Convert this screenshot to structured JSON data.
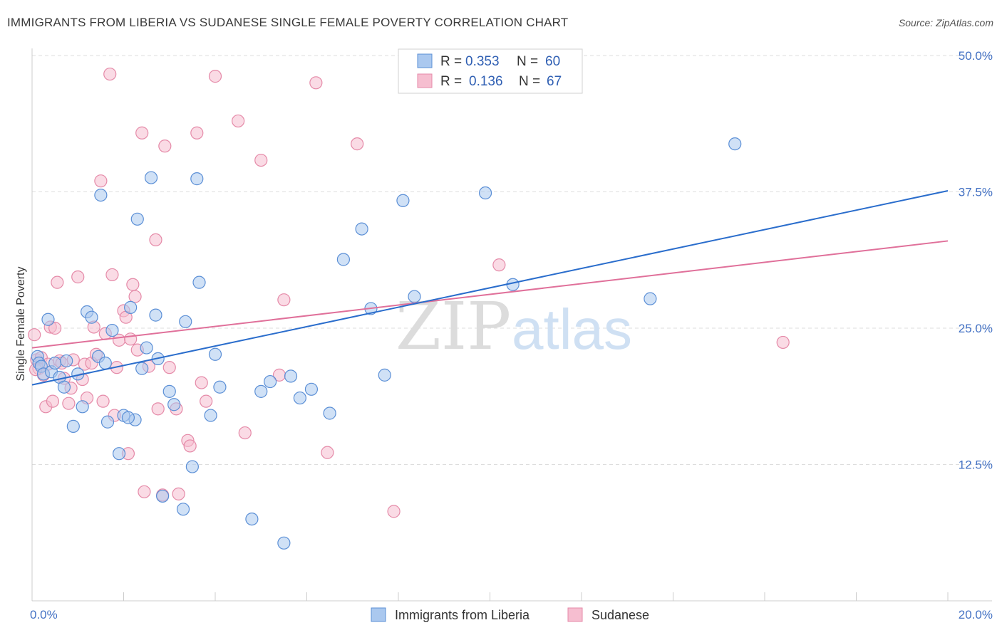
{
  "title": "IMMIGRANTS FROM LIBERIA VS SUDANESE SINGLE FEMALE POVERTY CORRELATION CHART",
  "source": "Source: ZipAtlas.com",
  "watermark": {
    "zip": "ZIP",
    "atlas": "atlas"
  },
  "legend_top": [
    {
      "r_label": "R =",
      "r_value": "0.353",
      "n_label": "N =",
      "n_value": "60"
    },
    {
      "r_label": "R =",
      "r_value": "0.136",
      "n_label": "N =",
      "n_value": "67"
    }
  ],
  "colors": {
    "blue_fill": "#aac8ef",
    "blue_stroke": "#5b8fd6",
    "blue_line": "#2a6dcc",
    "pink_fill": "#f6bed0",
    "pink_stroke": "#e58aa8",
    "pink_line": "#e0709a",
    "grid": "#dddddd",
    "tick_text": "#4472c4"
  },
  "chart_data": {
    "type": "scatter",
    "title": "IMMIGRANTS FROM LIBERIA VS SUDANESE SINGLE FEMALE POVERTY CORRELATION CHART",
    "xlabel": "",
    "ylabel": "Single Female Poverty",
    "xlim": [
      0,
      20
    ],
    "ylim": [
      0,
      52
    ],
    "x_tick_labels": [
      "0.0%",
      "20.0%"
    ],
    "y_tick_labels": [
      "12.5%",
      "25.0%",
      "37.5%",
      "50.0%"
    ],
    "y_ticks": [
      12.5,
      25,
      37.5,
      50
    ],
    "grid": true,
    "legend": "bottom-center",
    "series": [
      {
        "name": "Immigrants from Liberia",
        "r": 0.353,
        "n": 60,
        "trend": {
          "x": [
            0,
            20
          ],
          "y": [
            19.8,
            37.6
          ]
        },
        "points": [
          [
            0.12,
            22.4
          ],
          [
            0.15,
            21.8
          ],
          [
            0.2,
            21.5
          ],
          [
            0.25,
            20.8
          ],
          [
            0.35,
            25.8
          ],
          [
            0.42,
            21
          ],
          [
            0.5,
            21.8
          ],
          [
            0.6,
            20.5
          ],
          [
            0.7,
            19.6
          ],
          [
            0.75,
            22
          ],
          [
            0.9,
            16
          ],
          [
            1.0,
            20.8
          ],
          [
            1.1,
            17.8
          ],
          [
            1.2,
            26.5
          ],
          [
            1.3,
            26
          ],
          [
            1.45,
            22.4
          ],
          [
            1.5,
            37.2
          ],
          [
            1.6,
            21.8
          ],
          [
            1.65,
            16.4
          ],
          [
            1.75,
            24.8
          ],
          [
            1.9,
            13.5
          ],
          [
            2.0,
            17
          ],
          [
            2.15,
            26.9
          ],
          [
            2.25,
            16.6
          ],
          [
            2.1,
            16.8
          ],
          [
            2.3,
            35
          ],
          [
            2.4,
            21.3
          ],
          [
            2.5,
            23.2
          ],
          [
            2.6,
            38.8
          ],
          [
            2.7,
            26.2
          ],
          [
            2.75,
            22.2
          ],
          [
            2.85,
            9.6
          ],
          [
            3.0,
            19.2
          ],
          [
            3.1,
            18
          ],
          [
            3.3,
            8.4
          ],
          [
            3.35,
            25.6
          ],
          [
            3.5,
            12.3
          ],
          [
            3.6,
            38.7
          ],
          [
            3.65,
            29.2
          ],
          [
            3.9,
            17
          ],
          [
            4.0,
            22.6
          ],
          [
            4.1,
            19.6
          ],
          [
            4.8,
            7.5
          ],
          [
            5.0,
            19.2
          ],
          [
            5.2,
            20.1
          ],
          [
            5.5,
            5.3
          ],
          [
            5.65,
            20.6
          ],
          [
            5.85,
            18.6
          ],
          [
            6.1,
            19.4
          ],
          [
            6.5,
            17.2
          ],
          [
            6.8,
            31.3
          ],
          [
            7.2,
            34.1
          ],
          [
            7.4,
            26.8
          ],
          [
            7.7,
            20.7
          ],
          [
            8.1,
            36.7
          ],
          [
            8.35,
            27.9
          ],
          [
            9.9,
            37.4
          ],
          [
            10.5,
            29
          ],
          [
            13.5,
            27.7
          ],
          [
            15.35,
            41.9
          ]
        ]
      },
      {
        "name": "Sudanese",
        "r": 0.136,
        "n": 67,
        "trend": {
          "x": [
            0,
            20
          ],
          "y": [
            23.2,
            33
          ]
        },
        "points": [
          [
            0.1,
            22.1
          ],
          [
            0.15,
            21.3
          ],
          [
            0.2,
            22.3
          ],
          [
            0.25,
            20.7
          ],
          [
            0.3,
            17.8
          ],
          [
            0.35,
            21.7
          ],
          [
            0.4,
            25.1
          ],
          [
            0.45,
            18.3
          ],
          [
            0.5,
            25
          ],
          [
            0.55,
            29.2
          ],
          [
            0.6,
            22
          ],
          [
            0.65,
            21.8
          ],
          [
            0.7,
            20.4
          ],
          [
            0.8,
            18.1
          ],
          [
            0.85,
            19.5
          ],
          [
            0.9,
            22.1
          ],
          [
            1.0,
            29.7
          ],
          [
            1.1,
            20.3
          ],
          [
            1.15,
            21.7
          ],
          [
            1.2,
            18.6
          ],
          [
            1.3,
            21.8
          ],
          [
            1.35,
            25.1
          ],
          [
            1.4,
            22.6
          ],
          [
            1.5,
            38.5
          ],
          [
            1.55,
            18.3
          ],
          [
            1.6,
            24.5
          ],
          [
            1.7,
            48.3
          ],
          [
            1.75,
            29.9
          ],
          [
            1.8,
            17
          ],
          [
            1.85,
            21.4
          ],
          [
            1.9,
            23.9
          ],
          [
            2.0,
            26.6
          ],
          [
            2.05,
            26
          ],
          [
            2.1,
            13.5
          ],
          [
            2.15,
            24
          ],
          [
            2.2,
            29
          ],
          [
            2.25,
            27.9
          ],
          [
            2.3,
            23
          ],
          [
            2.4,
            42.9
          ],
          [
            2.45,
            10
          ],
          [
            2.55,
            21.5
          ],
          [
            2.7,
            33.1
          ],
          [
            2.75,
            17.6
          ],
          [
            2.85,
            9.7
          ],
          [
            2.9,
            41.7
          ],
          [
            3.0,
            21.4
          ],
          [
            3.15,
            17.6
          ],
          [
            3.2,
            9.8
          ],
          [
            3.4,
            14.7
          ],
          [
            3.45,
            14.2
          ],
          [
            3.6,
            42.9
          ],
          [
            3.7,
            20
          ],
          [
            3.8,
            18.3
          ],
          [
            4.0,
            48.1
          ],
          [
            4.5,
            44
          ],
          [
            4.65,
            15.4
          ],
          [
            5.0,
            40.4
          ],
          [
            5.4,
            20.7
          ],
          [
            5.5,
            27.6
          ],
          [
            6.2,
            47.5
          ],
          [
            6.45,
            13.6
          ],
          [
            7.1,
            41.9
          ],
          [
            7.9,
            8.2
          ],
          [
            10.2,
            30.8
          ],
          [
            16.4,
            23.7
          ],
          [
            0.05,
            24.4
          ],
          [
            0.08,
            21.2
          ]
        ]
      }
    ]
  }
}
